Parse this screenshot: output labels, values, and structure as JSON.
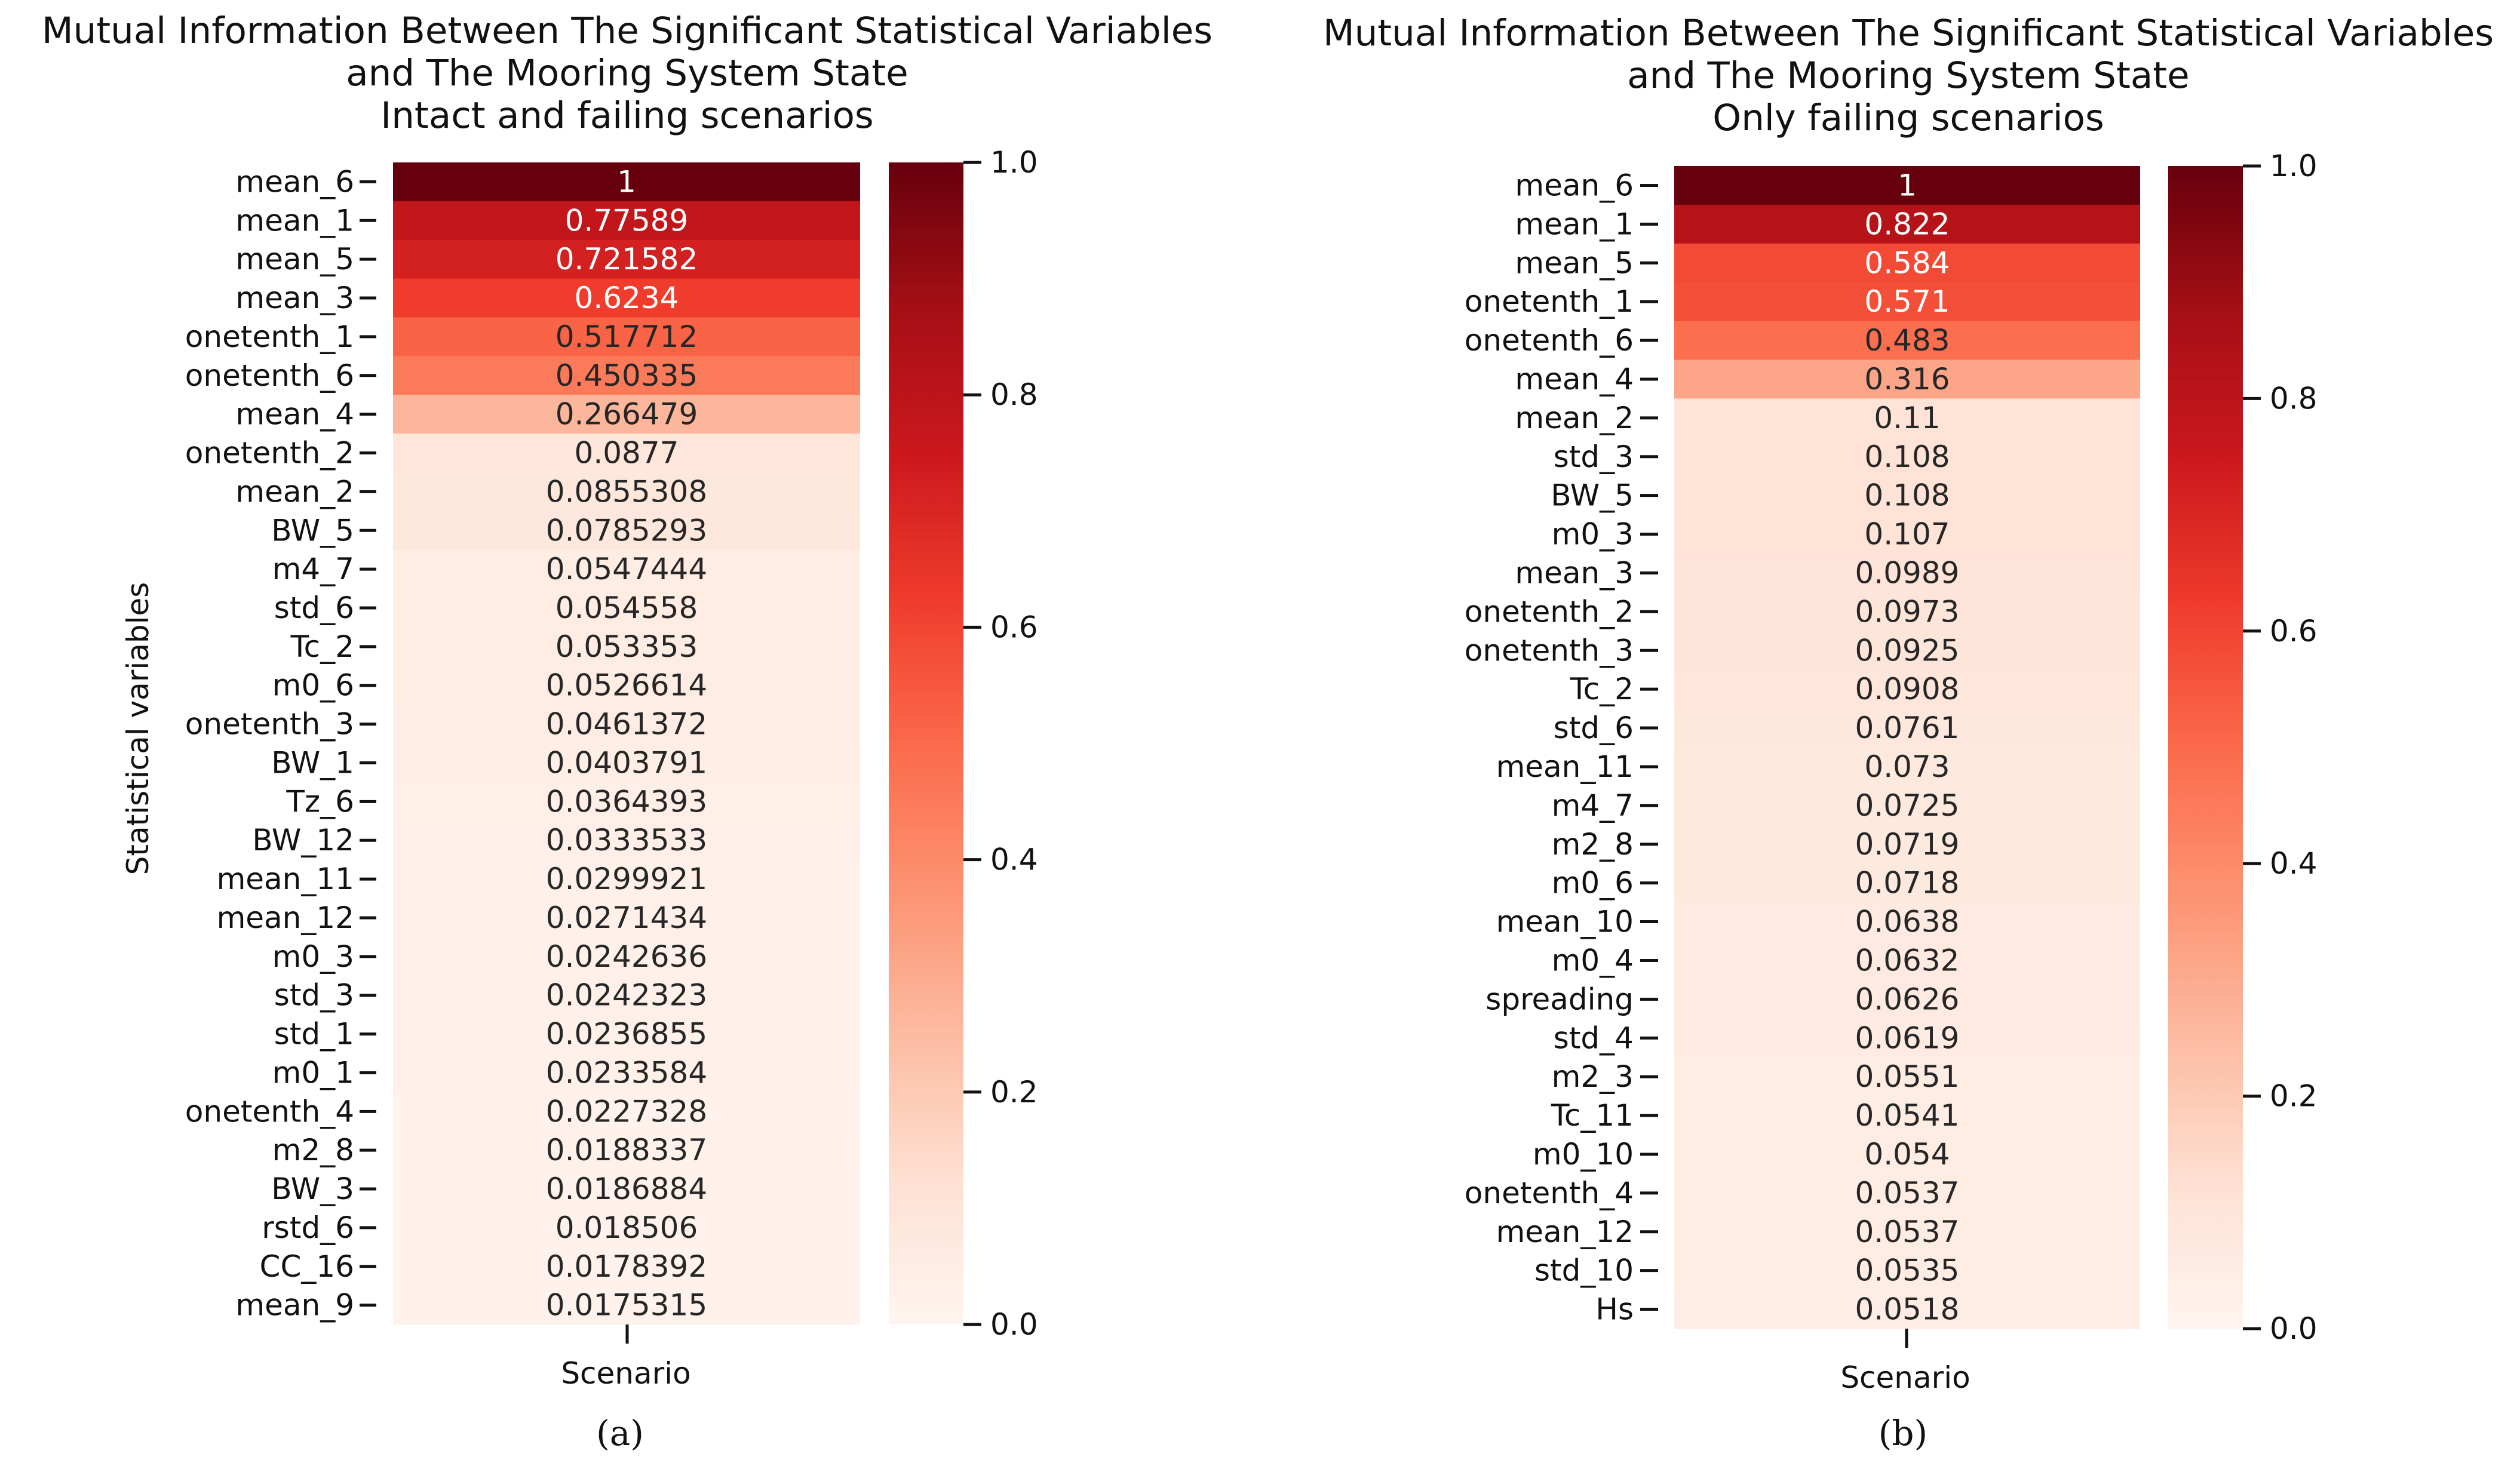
{
  "chart_data": [
    {
      "type": "heatmap",
      "panel_label": "(a)",
      "title_lines": [
        "Mutual Information Between The Significant Statistical Variables",
        "and The Mooring System State",
        "Intact and failing scenarios"
      ],
      "xlabel": "Scenario",
      "ylabel": "Statistical variables",
      "colormap": "Reds",
      "vmin": 0.0,
      "vmax": 1.0,
      "colorbar_ticks": [
        "0.0",
        "0.2",
        "0.4",
        "0.6",
        "0.8",
        "1.0"
      ],
      "rows": [
        "mean_6",
        "mean_1",
        "mean_5",
        "mean_3",
        "onetenth_1",
        "onetenth_6",
        "mean_4",
        "onetenth_2",
        "mean_2",
        "BW_5",
        "m4_7",
        "std_6",
        "Tc_2",
        "m0_6",
        "onetenth_3",
        "BW_1",
        "Tz_6",
        "BW_12",
        "mean_11",
        "mean_12",
        "m0_3",
        "std_3",
        "std_1",
        "m0_1",
        "onetenth_4",
        "m2_8",
        "BW_3",
        "rstd_6",
        "CC_16",
        "mean_9"
      ],
      "labels": [
        "1",
        "0.77589",
        "0.721582",
        "0.6234",
        "0.517712",
        "0.450335",
        "0.266479",
        "0.0877",
        "0.0855308",
        "0.0785293",
        "0.0547444",
        "0.054558",
        "0.053353",
        "0.0526614",
        "0.0461372",
        "0.0403791",
        "0.0364393",
        "0.0333533",
        "0.0299921",
        "0.0271434",
        "0.0242636",
        "0.0242323",
        "0.0236855",
        "0.0233584",
        "0.0227328",
        "0.0188337",
        "0.0186884",
        "0.018506",
        "0.0178392",
        "0.0175315"
      ],
      "values": [
        1,
        0.77589,
        0.721582,
        0.6234,
        0.517712,
        0.450335,
        0.266479,
        0.0877,
        0.0855308,
        0.0785293,
        0.0547444,
        0.054558,
        0.053353,
        0.0526614,
        0.0461372,
        0.0403791,
        0.0364393,
        0.0333533,
        0.0299921,
        0.0271434,
        0.0242636,
        0.0242323,
        0.0236855,
        0.0233584,
        0.0227328,
        0.0188337,
        0.0186884,
        0.018506,
        0.0178392,
        0.0175315
      ]
    },
    {
      "type": "heatmap",
      "panel_label": "(b)",
      "title_lines": [
        "Mutual Information Between The Significant Statistical Variables",
        "and The Mooring System State",
        "Only failing scenarios"
      ],
      "xlabel": "Scenario",
      "ylabel": "",
      "colormap": "Reds",
      "vmin": 0.0,
      "vmax": 1.0,
      "colorbar_ticks": [
        "0.0",
        "0.2",
        "0.4",
        "0.6",
        "0.8",
        "1.0"
      ],
      "rows": [
        "mean_6",
        "mean_1",
        "mean_5",
        "onetenth_1",
        "onetenth_6",
        "mean_4",
        "mean_2",
        "std_3",
        "BW_5",
        "m0_3",
        "mean_3",
        "onetenth_2",
        "onetenth_3",
        "Tc_2",
        "std_6",
        "mean_11",
        "m4_7",
        "m2_8",
        "m0_6",
        "mean_10",
        "m0_4",
        "spreading",
        "std_4",
        "m2_3",
        "Tc_11",
        "m0_10",
        "onetenth_4",
        "mean_12",
        "std_10",
        "Hs"
      ],
      "labels": [
        "1",
        "0.822",
        "0.584",
        "0.571",
        "0.483",
        "0.316",
        "0.11",
        "0.108",
        "0.108",
        "0.107",
        "0.0989",
        "0.0973",
        "0.0925",
        "0.0908",
        "0.0761",
        "0.073",
        "0.0725",
        "0.0719",
        "0.0718",
        "0.0638",
        "0.0632",
        "0.0626",
        "0.0619",
        "0.0551",
        "0.0541",
        "0.054",
        "0.0537",
        "0.0537",
        "0.0535",
        "0.0518"
      ],
      "values": [
        1,
        0.822,
        0.584,
        0.571,
        0.483,
        0.316,
        0.11,
        0.108,
        0.108,
        0.107,
        0.0989,
        0.0973,
        0.0925,
        0.0908,
        0.0761,
        0.073,
        0.0725,
        0.0719,
        0.0718,
        0.0638,
        0.0632,
        0.0626,
        0.0619,
        0.0551,
        0.0541,
        0.054,
        0.0537,
        0.0537,
        0.0535,
        0.0518
      ]
    }
  ]
}
